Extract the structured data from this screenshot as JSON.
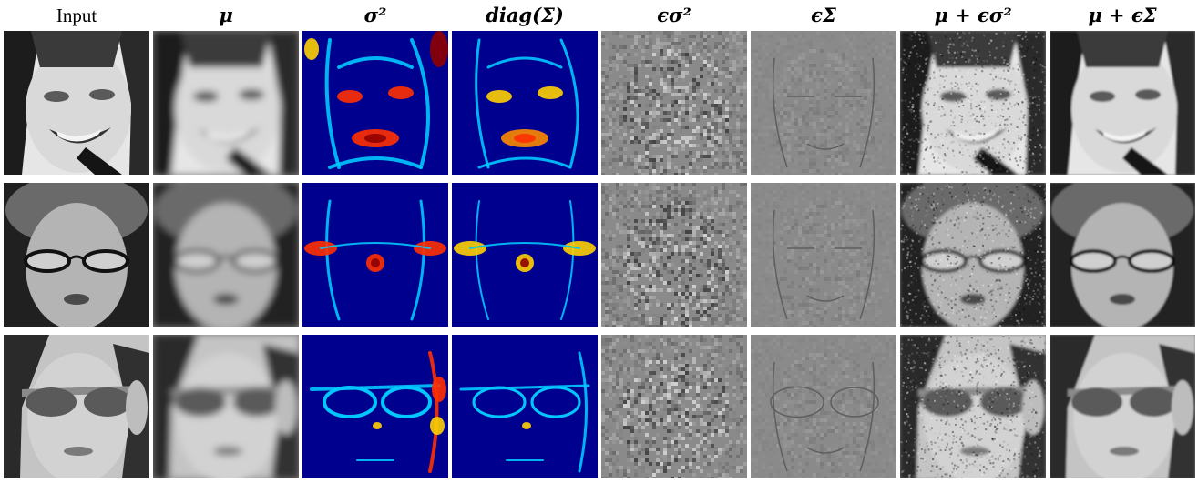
{
  "figure": {
    "columns": [
      {
        "id": "input",
        "label": "Input",
        "panel": "grayscale-face"
      },
      {
        "id": "mu",
        "label": "μ",
        "panel": "blurred-face"
      },
      {
        "id": "sigma2",
        "label": "σ²",
        "panel": "jet-heatmap"
      },
      {
        "id": "diagSigma",
        "label": "diag(Σ)",
        "panel": "jet-heatmap"
      },
      {
        "id": "eps_sigma2",
        "label": "ϵσ²",
        "panel": "noise-residual"
      },
      {
        "id": "eps_Sigma",
        "label": "ϵΣ",
        "panel": "edge-residual"
      },
      {
        "id": "mu_plus_eps_sigma2",
        "label": "μ + ϵσ²",
        "panel": "noisy-face"
      },
      {
        "id": "mu_plus_eps_Sigma",
        "label": "μ + ϵΣ",
        "panel": "sharp-face"
      }
    ],
    "rows": [
      {
        "id": "row-1",
        "subject": "smiling-person-with-dark-hair"
      },
      {
        "id": "row-2",
        "subject": "woman-with-reading-glasses"
      },
      {
        "id": "row-3",
        "subject": "woman-with-sunglasses"
      }
    ],
    "colors": {
      "jet_low": "#00008f",
      "jet_mid": "#00c8ff",
      "jet_high": "#ff3000",
      "jet_peak": "#8f0000",
      "residual_gray": "#8a8a8a"
    }
  }
}
